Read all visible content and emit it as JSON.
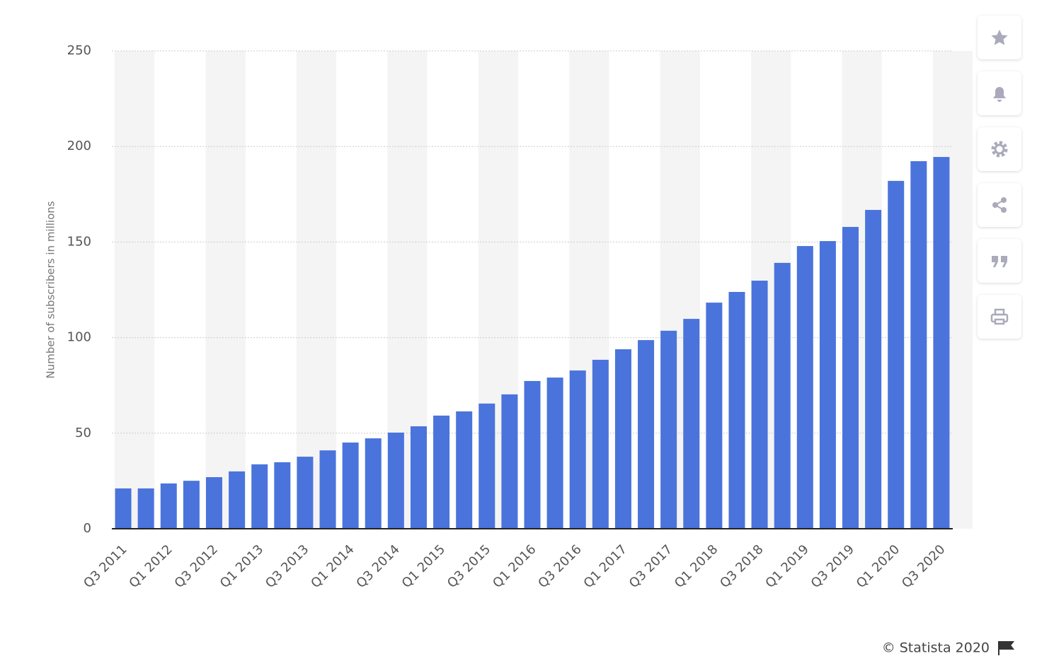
{
  "chart_data": {
    "type": "bar",
    "y_label": "Number of subscribers in millions",
    "source": "© Statista 2020",
    "categories": [
      "Q3 2011",
      null,
      "Q1 2012",
      null,
      "Q3 2012",
      null,
      "Q1 2013",
      null,
      "Q3 2013",
      null,
      "Q1 2014",
      null,
      "Q3 2014",
      null,
      "Q1 2015",
      null,
      "Q3 2015",
      null,
      "Q1 2016",
      null,
      "Q3 2016",
      null,
      "Q1 2017",
      null,
      "Q3 2017",
      null,
      "Q1 2018",
      null,
      "Q3 2018",
      null,
      "Q1 2019",
      null,
      "Q3 2019",
      null,
      "Q1 2020",
      null,
      "Q3 2020"
    ],
    "values": [
      21.1,
      21.1,
      23.7,
      25.1,
      27.0,
      30.0,
      33.7,
      34.8,
      37.7,
      41.0,
      45.1,
      47.3,
      50.3,
      53.6,
      59.2,
      61.4,
      65.5,
      70.3,
      77.3,
      79.1,
      82.8,
      88.4,
      93.9,
      98.7,
      103.6,
      109.8,
      118.3,
      123.9,
      129.8,
      139.1,
      147.9,
      150.5,
      157.9,
      166.8,
      182.0,
      192.3,
      194.5
    ],
    "color": "#4a74dc",
    "ylim": [
      0,
      250
    ],
    "yticks": [
      0,
      50,
      100,
      150,
      200,
      250
    ],
    "grid": true
  }
}
